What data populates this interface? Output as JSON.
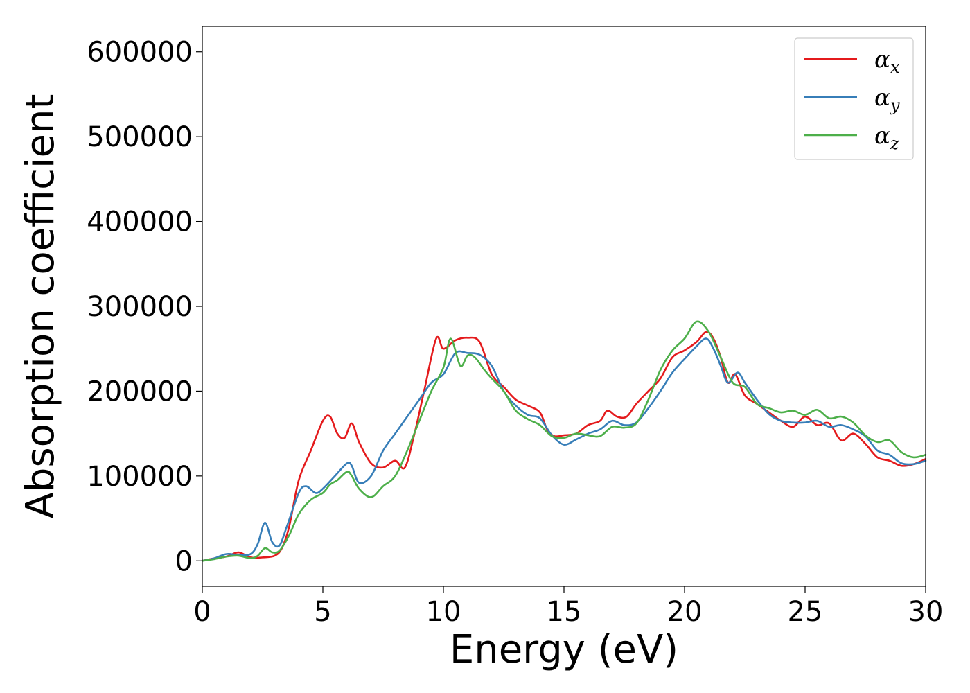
{
  "chart_data": {
    "type": "line",
    "xlabel": "Energy (eV)",
    "ylabel": "Absorption coefficient",
    "xlim": [
      0,
      30
    ],
    "ylim": [
      -30000,
      630000
    ],
    "xticks": [
      0,
      5,
      10,
      15,
      20,
      25,
      30
    ],
    "yticks": [
      0,
      100000,
      200000,
      300000,
      400000,
      500000,
      600000
    ],
    "grid": false,
    "legend_position": "top-right",
    "series": [
      {
        "name": "α_x",
        "legend_base": "α",
        "legend_sub": "x",
        "color": "#e41a1c",
        "x": [
          0,
          0.5,
          1.0,
          1.5,
          2.0,
          2.5,
          3.0,
          3.3,
          3.6,
          4.0,
          4.5,
          5.0,
          5.3,
          5.6,
          5.9,
          6.2,
          6.5,
          7.0,
          7.5,
          8.0,
          8.4,
          8.8,
          9.2,
          9.7,
          10.0,
          10.5,
          11.0,
          11.5,
          12.0,
          12.5,
          13.0,
          13.5,
          14.0,
          14.3,
          14.6,
          15.0,
          15.5,
          16.0,
          16.5,
          16.8,
          17.2,
          17.6,
          18.0,
          18.5,
          19.0,
          19.5,
          20.0,
          20.5,
          20.9,
          21.2,
          21.5,
          21.8,
          22.1,
          22.5,
          23.0,
          23.5,
          24.0,
          24.5,
          25.0,
          25.5,
          26.0,
          26.5,
          27.0,
          27.5,
          28.0,
          28.5,
          29.0,
          29.5,
          30.0
        ],
        "y": [
          0,
          3000,
          5000,
          10000,
          4000,
          4000,
          6000,
          15000,
          40000,
          95000,
          130000,
          165000,
          170000,
          150000,
          145000,
          162000,
          140000,
          115000,
          110000,
          118000,
          110000,
          150000,
          200000,
          262000,
          250000,
          260000,
          263000,
          258000,
          220000,
          205000,
          190000,
          183000,
          175000,
          155000,
          147000,
          148000,
          150000,
          160000,
          165000,
          177000,
          170000,
          170000,
          185000,
          200000,
          215000,
          240000,
          248000,
          258000,
          270000,
          262000,
          240000,
          210000,
          220000,
          195000,
          185000,
          175000,
          165000,
          158000,
          170000,
          160000,
          162000,
          142000,
          150000,
          138000,
          122000,
          118000,
          112000,
          114000,
          120000
        ]
      },
      {
        "name": "α_y",
        "legend_base": "α",
        "legend_sub": "y",
        "color": "#377eb8",
        "x": [
          0,
          0.5,
          1.0,
          1.5,
          2.0,
          2.3,
          2.6,
          2.9,
          3.2,
          3.5,
          4.0,
          4.3,
          4.7,
          5.0,
          5.5,
          6.0,
          6.2,
          6.5,
          7.0,
          7.5,
          8.0,
          8.5,
          9.0,
          9.5,
          10.0,
          10.5,
          11.0,
          11.5,
          12.0,
          12.5,
          13.0,
          13.5,
          14.0,
          14.5,
          15.0,
          15.5,
          16.0,
          16.5,
          17.0,
          17.5,
          18.0,
          18.5,
          19.0,
          19.5,
          20.0,
          20.5,
          20.9,
          21.2,
          21.5,
          21.8,
          22.2,
          22.5,
          23.0,
          23.5,
          24.0,
          24.5,
          25.0,
          25.5,
          26.0,
          26.5,
          27.0,
          27.5,
          28.0,
          28.5,
          29.0,
          29.5,
          30.0
        ],
        "y": [
          0,
          3000,
          8000,
          7000,
          8000,
          20000,
          45000,
          22000,
          18000,
          40000,
          80000,
          88000,
          80000,
          85000,
          100000,
          115000,
          112000,
          92000,
          100000,
          130000,
          150000,
          170000,
          190000,
          210000,
          220000,
          245000,
          245000,
          243000,
          230000,
          200000,
          183000,
          172000,
          168000,
          148000,
          137000,
          143000,
          150000,
          155000,
          165000,
          160000,
          163000,
          180000,
          200000,
          222000,
          238000,
          253000,
          262000,
          250000,
          230000,
          210000,
          222000,
          210000,
          190000,
          173000,
          165000,
          163000,
          163000,
          165000,
          158000,
          160000,
          155000,
          147000,
          130000,
          125000,
          115000,
          114000,
          118000
        ]
      },
      {
        "name": "α_z",
        "legend_base": "α",
        "legend_sub": "z",
        "color": "#4daf4a",
        "x": [
          0,
          0.5,
          1.0,
          1.5,
          2.0,
          2.3,
          2.6,
          2.9,
          3.2,
          3.6,
          4.0,
          4.5,
          5.0,
          5.3,
          5.6,
          6.0,
          6.2,
          6.5,
          7.0,
          7.5,
          8.0,
          8.5,
          9.0,
          9.5,
          10.0,
          10.3,
          10.7,
          11.0,
          11.3,
          11.7,
          12.0,
          12.5,
          13.0,
          13.5,
          14.0,
          14.5,
          15.0,
          15.5,
          16.0,
          16.5,
          17.0,
          17.5,
          18.0,
          18.5,
          19.0,
          19.5,
          20.0,
          20.5,
          21.0,
          21.5,
          22.0,
          22.5,
          23.0,
          23.5,
          24.0,
          24.5,
          25.0,
          25.5,
          26.0,
          26.5,
          27.0,
          27.5,
          28.0,
          28.5,
          29.0,
          29.5,
          30.0
        ],
        "y": [
          0,
          2000,
          5000,
          6000,
          3000,
          6000,
          15000,
          10000,
          12000,
          30000,
          55000,
          72000,
          80000,
          90000,
          95000,
          105000,
          100000,
          85000,
          75000,
          88000,
          100000,
          130000,
          165000,
          200000,
          228000,
          262000,
          230000,
          242000,
          240000,
          225000,
          215000,
          200000,
          177000,
          167000,
          160000,
          147000,
          145000,
          150000,
          148000,
          147000,
          158000,
          157000,
          162000,
          190000,
          225000,
          248000,
          262000,
          282000,
          270000,
          240000,
          210000,
          205000,
          185000,
          180000,
          175000,
          177000,
          172000,
          178000,
          168000,
          170000,
          163000,
          148000,
          140000,
          142000,
          128000,
          122000,
          125000
        ]
      }
    ]
  }
}
